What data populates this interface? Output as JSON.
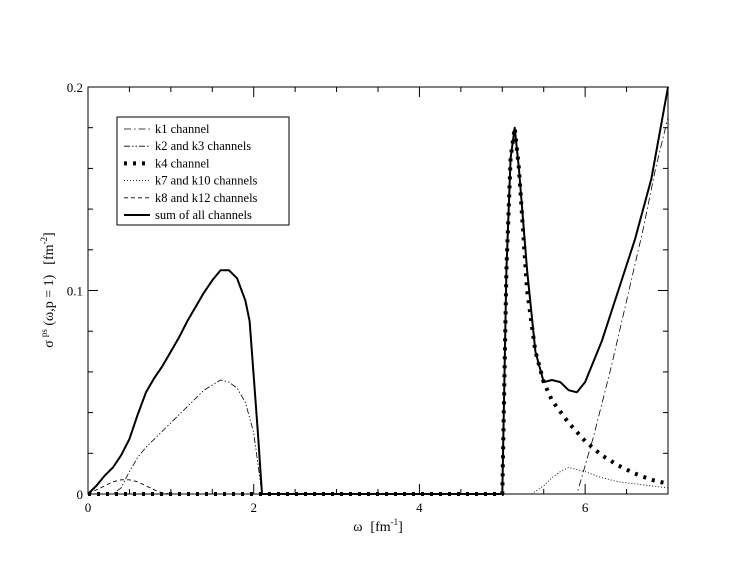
{
  "chart_data": {
    "type": "line",
    "title": "",
    "xlabel": "ω",
    "xlabel_unit": "[fm",
    "xlabel_unit_sup": "-1",
    "xlabel_unit_close": "]",
    "ylabel_sigma": "σ",
    "ylabel_sup": "ps",
    "ylabel_args": " (ω,p = 1)",
    "ylabel_unit": "[fm",
    "ylabel_unit_sup": "-2",
    "ylabel_unit_close": "]",
    "xlim": [
      0,
      7
    ],
    "ylim": [
      0,
      0.2
    ],
    "xticks": [
      0,
      2,
      4,
      6
    ],
    "xtick_labels": [
      "0",
      "2",
      "4",
      "6"
    ],
    "yticks": [
      0,
      0.1,
      0.2
    ],
    "ytick_labels": [
      "0",
      "0.1",
      "0.2"
    ],
    "grid": false,
    "legend_position": "top-left",
    "series": [
      {
        "name": "k1 channel",
        "style": "dashdot",
        "x": [
          5.3,
          5.6,
          5.9,
          6.1,
          6.3,
          6.5,
          6.7,
          6.85,
          7.0
        ],
        "y": [
          0.0,
          0.0,
          0.0,
          0.028,
          0.06,
          0.095,
          0.13,
          0.16,
          0.185
        ]
      },
      {
        "name": "k2 and k3 channels",
        "style": "dashdotdot",
        "x": [
          0.0,
          0.1,
          0.2,
          0.3,
          0.4,
          0.5,
          0.6,
          0.7,
          0.8,
          0.9,
          1.0,
          1.2,
          1.4,
          1.6,
          1.7,
          1.8,
          1.9,
          2.0,
          2.05,
          2.1
        ],
        "y": [
          0.0,
          0.0,
          0.0,
          0.0,
          0.003,
          0.011,
          0.018,
          0.023,
          0.027,
          0.031,
          0.035,
          0.043,
          0.051,
          0.056,
          0.055,
          0.052,
          0.045,
          0.03,
          0.015,
          0.0
        ]
      },
      {
        "name": "k4 channel",
        "style": "dotted-thick",
        "x": [
          0.0,
          1.0,
          2.0,
          3.0,
          4.0,
          5.0,
          5.05,
          5.1,
          5.15,
          5.2,
          5.3,
          5.4,
          5.5,
          5.6,
          5.8,
          6.0,
          6.2,
          6.4,
          6.6,
          6.8,
          7.0
        ],
        "y": [
          0.0,
          0.0,
          0.0,
          0.0,
          0.0,
          0.0,
          0.11,
          0.165,
          0.18,
          0.16,
          0.1,
          0.07,
          0.055,
          0.046,
          0.035,
          0.026,
          0.019,
          0.014,
          0.01,
          0.007,
          0.005
        ]
      },
      {
        "name": "k7 and k10 channels",
        "style": "dotted",
        "x": [
          5.35,
          5.5,
          5.6,
          5.7,
          5.8,
          5.9,
          6.0,
          6.2,
          6.4,
          6.6,
          6.8,
          7.0
        ],
        "y": [
          0.0,
          0.004,
          0.008,
          0.011,
          0.013,
          0.012,
          0.011,
          0.008,
          0.006,
          0.005,
          0.004,
          0.003
        ]
      },
      {
        "name": "k8 and k12 channels",
        "style": "dashed",
        "x": [
          0.0,
          0.1,
          0.2,
          0.3,
          0.4,
          0.5,
          0.6,
          0.7,
          0.8,
          0.9,
          1.0
        ],
        "y": [
          0.0,
          0.002,
          0.004,
          0.006,
          0.007,
          0.007,
          0.006,
          0.004,
          0.002,
          0.0005,
          0.0
        ]
      },
      {
        "name": "sum of all channels",
        "style": "solid",
        "x": [
          0.0,
          0.1,
          0.2,
          0.3,
          0.4,
          0.5,
          0.6,
          0.7,
          0.8,
          0.9,
          1.0,
          1.1,
          1.2,
          1.3,
          1.4,
          1.5,
          1.6,
          1.7,
          1.8,
          1.9,
          1.95,
          2.0,
          2.05,
          2.1,
          3.0,
          4.0,
          5.0,
          5.05,
          5.1,
          5.15,
          5.2,
          5.3,
          5.4,
          5.5,
          5.6,
          5.7,
          5.8,
          5.9,
          6.0,
          6.2,
          6.4,
          6.6,
          6.8,
          7.0
        ],
        "y": [
          0.0,
          0.004,
          0.009,
          0.013,
          0.019,
          0.027,
          0.039,
          0.05,
          0.057,
          0.063,
          0.07,
          0.077,
          0.085,
          0.092,
          0.099,
          0.105,
          0.11,
          0.11,
          0.106,
          0.095,
          0.085,
          0.058,
          0.03,
          0.0,
          0.0,
          0.0,
          0.0,
          0.11,
          0.165,
          0.18,
          0.16,
          0.11,
          0.07,
          0.055,
          0.056,
          0.055,
          0.051,
          0.05,
          0.055,
          0.075,
          0.1,
          0.125,
          0.155,
          0.2
        ]
      }
    ]
  }
}
